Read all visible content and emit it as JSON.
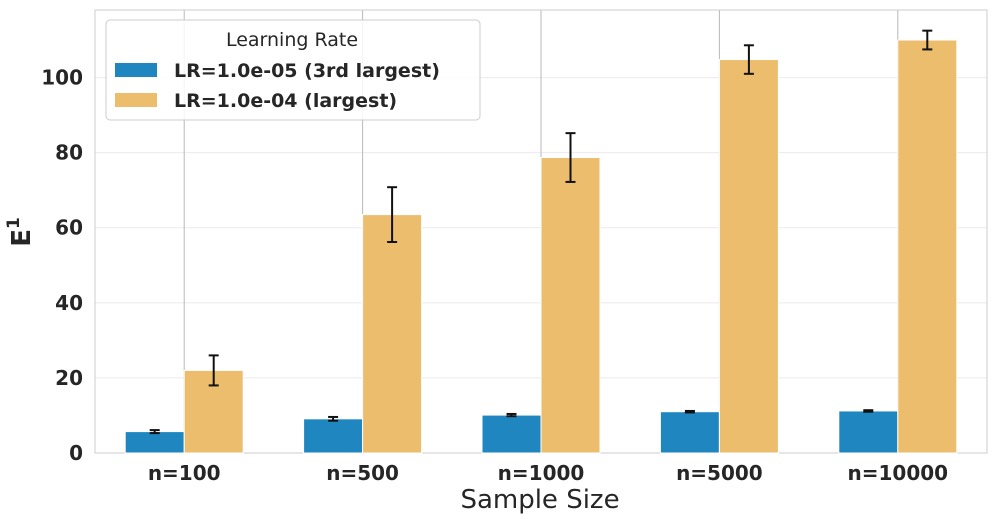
{
  "chart_data": {
    "type": "bar",
    "title": "",
    "xlabel": "Sample Size",
    "ylabel_main": "E",
    "ylabel_sup": "1",
    "categories": [
      "n=100",
      "n=500",
      "n=1000",
      "n=5000",
      "n=10000"
    ],
    "ylim": [
      0,
      118
    ],
    "yticks": [
      0,
      20,
      40,
      60,
      80,
      100
    ],
    "grid": true,
    "legend": {
      "title": "Learning Rate",
      "placement": "top-left"
    },
    "series": [
      {
        "name": "LR=1.0e-05 (3rd largest)",
        "color": "#1f86bf",
        "values": [
          5.7,
          9.1,
          10.1,
          11.0,
          11.2
        ],
        "errors": [
          0.4,
          0.5,
          0.3,
          0.2,
          0.2
        ]
      },
      {
        "name": "LR=1.0e-04 (largest)",
        "color": "#ebbd6c",
        "values": [
          22.0,
          63.5,
          78.7,
          104.8,
          110.0
        ],
        "errors": [
          4.0,
          7.3,
          6.5,
          3.8,
          2.5
        ]
      }
    ]
  }
}
